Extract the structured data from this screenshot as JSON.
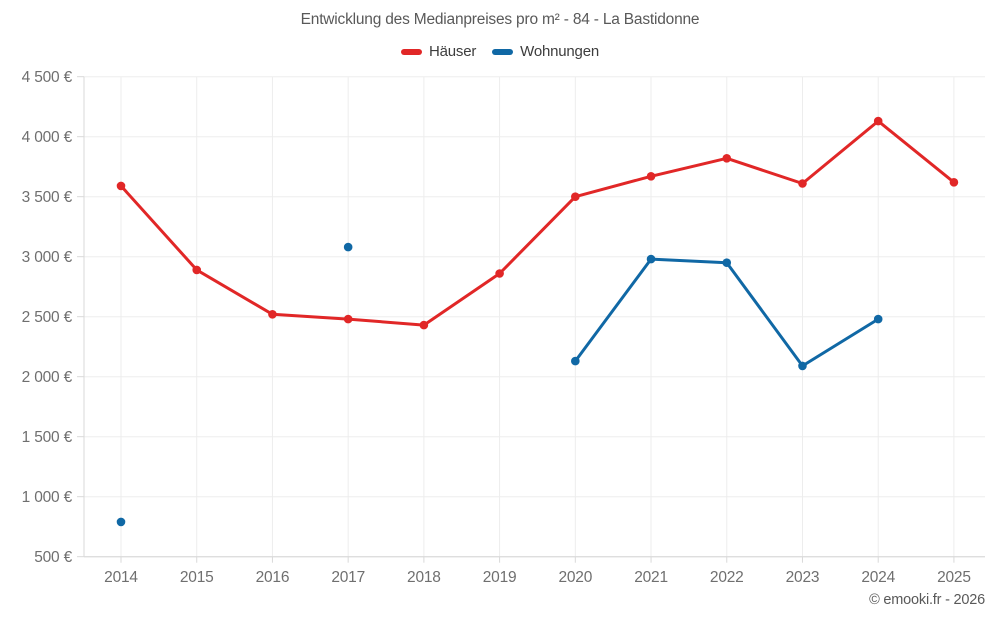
{
  "title": "Entwicklung des Medianpreises pro m² - 84 - La Bastidonne",
  "legend": {
    "items": [
      {
        "label": "Häuser",
        "color": "#e12727"
      },
      {
        "label": "Wohnungen",
        "color": "#1068a5"
      }
    ]
  },
  "footer": {
    "copyright": "© emooki.fr - 2026"
  },
  "colors": {
    "hauser": "#e12727",
    "wohnungen": "#1068a5",
    "gridline": "#ededed",
    "axis": "#d9d9d9",
    "tick_label": "#6f6f6f"
  },
  "chart_data": {
    "type": "line",
    "title": "Entwicklung des Medianpreises pro m² - 84 - La Bastidonne",
    "categories": [
      "2014",
      "2015",
      "2016",
      "2017",
      "2018",
      "2019",
      "2020",
      "2021",
      "2022",
      "2023",
      "2024",
      "2025"
    ],
    "series": [
      {
        "name": "Häuser",
        "color": "#e12727",
        "values": [
          3590,
          2890,
          2520,
          2480,
          2430,
          2860,
          3500,
          3670,
          3820,
          3610,
          4130,
          3620
        ]
      },
      {
        "name": "Wohnungen",
        "color": "#1068a5",
        "values": [
          790,
          null,
          null,
          3080,
          null,
          null,
          2130,
          2980,
          2950,
          2090,
          2480,
          null
        ]
      }
    ],
    "xlabel": "",
    "ylabel": "",
    "ylim": [
      500,
      4500
    ],
    "yticks": [
      500,
      1000,
      1500,
      2000,
      2500,
      3000,
      3500,
      4000,
      4500
    ],
    "ytick_labels": [
      "500 €",
      "1 000 €",
      "1 500 €",
      "2 000 €",
      "2 500 €",
      "3 000 €",
      "3 500 €",
      "4 000 €",
      "4 500 €"
    ],
    "grid": true,
    "legend_position": "top",
    "marker": "circle",
    "annotations": [
      "© emooki.fr - 2026"
    ]
  }
}
